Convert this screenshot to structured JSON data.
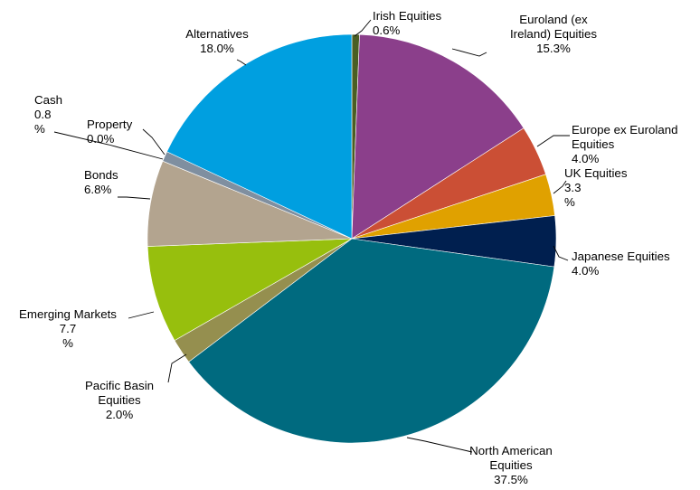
{
  "chart_data": {
    "type": "pie",
    "title": "",
    "slices": [
      {
        "label": "Irish Equities",
        "value": 0.6,
        "display": "0.6%",
        "color": "#4a5e23",
        "text": [
          "Irish Equities",
          "0.6%"
        ]
      },
      {
        "label": "Euroland (ex Ireland) Equities",
        "value": 15.3,
        "display": "15.3%",
        "color": "#8b3f8b",
        "text": [
          "Euroland (ex",
          "Ireland) Equities",
          "15.3%"
        ]
      },
      {
        "label": "Europe ex Euroland Equities",
        "value": 4.0,
        "display": "4.0%",
        "color": "#cb4f35",
        "text": [
          "Europe ex Euroland",
          "Equities",
          "4.0%"
        ]
      },
      {
        "label": "UK Equities",
        "value": 3.3,
        "display": "3.3 %",
        "color": "#e0a100",
        "text": [
          "UK Equities",
          "3.3",
          "%"
        ]
      },
      {
        "label": "Japanese Equities",
        "value": 4.0,
        "display": "4.0%",
        "color": "#001f4f",
        "text": [
          "Japanese Equities",
          "4.0%"
        ]
      },
      {
        "label": "North American Equities",
        "value": 37.5,
        "display": "37.5%",
        "color": "#006a7f",
        "text": [
          "North American",
          "Equities",
          "37.5%"
        ]
      },
      {
        "label": "Pacific Basin Equities",
        "value": 2.0,
        "display": "2.0%",
        "color": "#958f4f",
        "text": [
          "Pacific Basin",
          "Equities",
          "2.0%"
        ]
      },
      {
        "label": "Emerging Markets",
        "value": 7.7,
        "display": "7.7 %",
        "color": "#97bf0d",
        "text": [
          "Emerging Markets",
          "7.7",
          "%"
        ]
      },
      {
        "label": "Bonds",
        "value": 6.8,
        "display": "6.8%",
        "color": "#b3a48f",
        "text": [
          "Bonds",
          "6.8%"
        ]
      },
      {
        "label": "Property",
        "value": 0.0,
        "display": "0.0%",
        "color": "#7a7a7a",
        "text": [
          "Property",
          "0.0%"
        ]
      },
      {
        "label": "Cash",
        "value": 0.8,
        "display": "0.8 %",
        "color": "#7f8fa0",
        "text": [
          "Cash",
          "0.8",
          "%"
        ]
      },
      {
        "label": "Alternatives",
        "value": 18.0,
        "display": "18.0%",
        "color": "#009fe0",
        "text": [
          "Alternatives",
          "18.0%"
        ]
      }
    ]
  }
}
